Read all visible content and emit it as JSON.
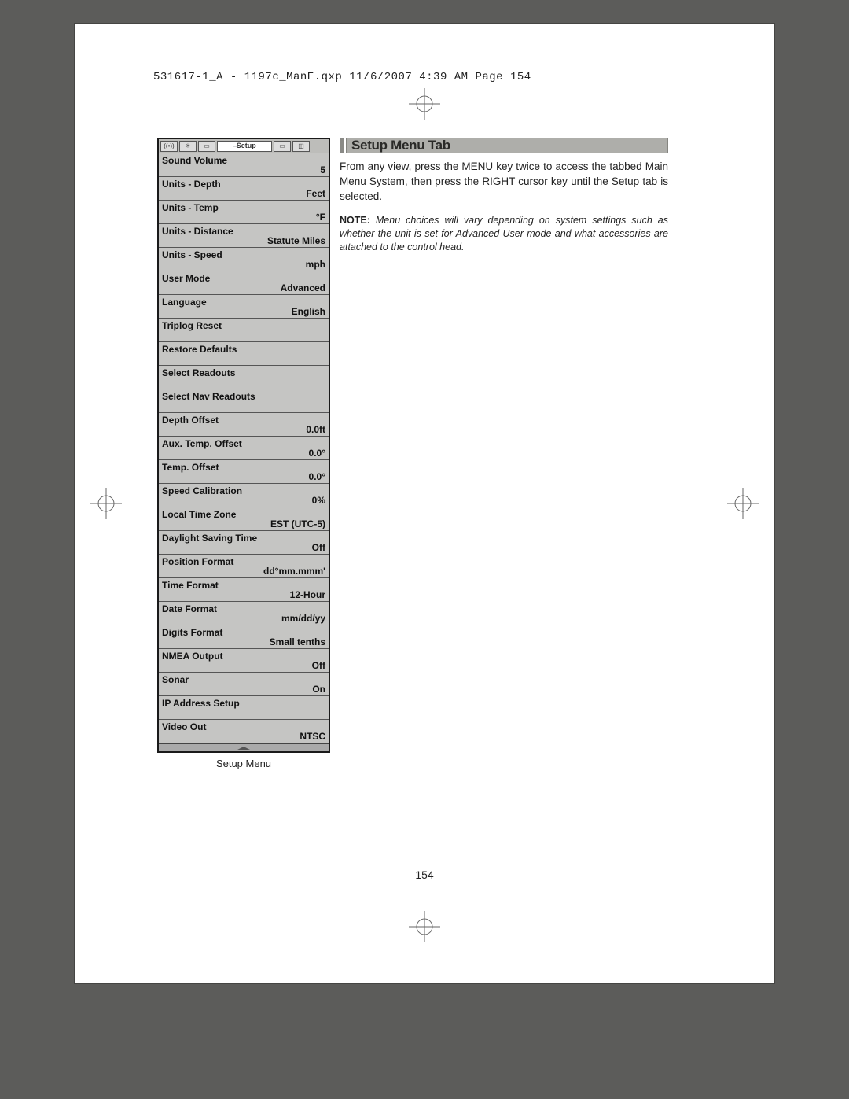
{
  "header": "531617-1_A - 1197c_ManE.qxp  11/6/2007  4:39 AM  Page 154",
  "page_number": "154",
  "tab_bar": {
    "icons": [
      {
        "name": "sonar-tab-icon",
        "glyph": "((•))"
      },
      {
        "name": "light-tab-icon",
        "glyph": "✳"
      },
      {
        "name": "view-tab-icon",
        "glyph": "▭"
      }
    ],
    "active_label": "⎯Setup",
    "icons_after": [
      {
        "name": "item-tab-icon",
        "glyph": "▭"
      },
      {
        "name": "accessory-tab-icon",
        "glyph": "◫"
      }
    ]
  },
  "menu": {
    "caption": "Setup Menu",
    "items": [
      {
        "label": "Sound Volume",
        "value": "5"
      },
      {
        "label": "Units - Depth",
        "value": "Feet"
      },
      {
        "label": "Units - Temp",
        "value": "°F"
      },
      {
        "label": "Units - Distance",
        "value": "Statute Miles"
      },
      {
        "label": "Units - Speed",
        "value": "mph"
      },
      {
        "label": "User Mode",
        "value": "Advanced"
      },
      {
        "label": "Language",
        "value": "English"
      },
      {
        "label": "Triplog Reset",
        "value": ""
      },
      {
        "label": "Restore Defaults",
        "value": ""
      },
      {
        "label": "Select Readouts",
        "value": ""
      },
      {
        "label": "Select Nav Readouts",
        "value": ""
      },
      {
        "label": "Depth Offset",
        "value": "0.0ft"
      },
      {
        "label": "Aux. Temp. Offset",
        "value": "0.0°"
      },
      {
        "label": "Temp. Offset",
        "value": "0.0°"
      },
      {
        "label": "Speed Calibration",
        "value": "0%"
      },
      {
        "label": "Local Time Zone",
        "value": "EST (UTC-5)"
      },
      {
        "label": "Daylight Saving Time",
        "value": "Off"
      },
      {
        "label": "Position Format",
        "value": "dd°mm.mmm'"
      },
      {
        "label": "Time Format",
        "value": "12-Hour"
      },
      {
        "label": "Date Format",
        "value": "mm/dd/yy"
      },
      {
        "label": "Digits Format",
        "value": "Small tenths"
      },
      {
        "label": "NMEA Output",
        "value": "Off"
      },
      {
        "label": "Sonar",
        "value": "On"
      },
      {
        "label": "IP Address Setup",
        "value": ""
      },
      {
        "label": "Video Out",
        "value": "NTSC"
      }
    ]
  },
  "right": {
    "title": "Setup Menu Tab",
    "para": "From any view, press the MENU key twice to access the tabbed Main Menu System, then press the RIGHT cursor key until the Setup tab is selected.",
    "note_lead": "NOTE:",
    "note": "Menu choices will vary depending on system settings such as whether the unit is set for Advanced User mode and what accessories are attached to the control head."
  }
}
